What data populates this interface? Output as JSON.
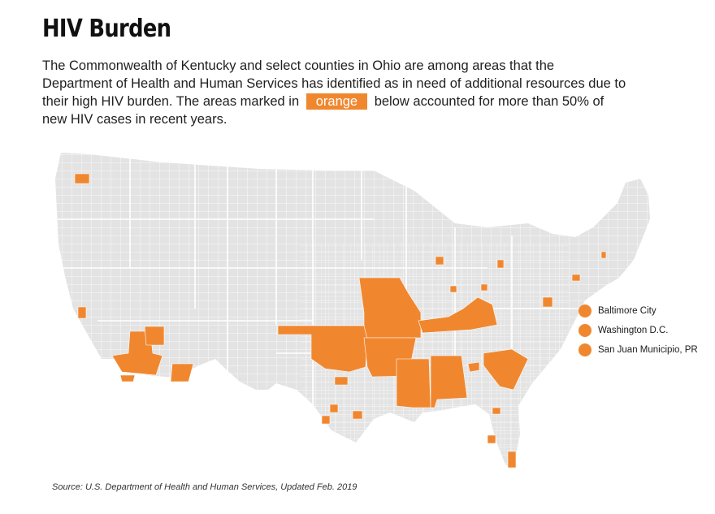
{
  "title": "HIV Burden",
  "intro": {
    "before": "The Commonwealth of Kentucky and select counties in Ohio are among areas that the Department of Health and Human Services has identified as in need of additional resources due to their high HIV burden. The areas marked in",
    "highlight": "orange",
    "after": "below accounted for more than 50% of new HIV cases in recent years."
  },
  "colors": {
    "highlight": "#f0872f",
    "base_fill": "#e3e3e3",
    "county_lines": "#ffffff"
  },
  "highlighted_states": [
    "Missouri",
    "Oklahoma",
    "Arkansas",
    "Kentucky",
    "Mississippi",
    "Alabama",
    "South Carolina"
  ],
  "legend": [
    {
      "label": "Baltimore City"
    },
    {
      "label": "Washington D.C."
    },
    {
      "label": "San Juan Municipio, PR"
    }
  ],
  "source": "Source: U.S. Department of Health and Human Services, Updated Feb. 2019"
}
